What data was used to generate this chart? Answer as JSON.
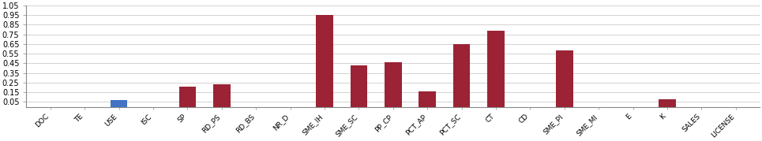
{
  "categories": [
    "DOC",
    "TE",
    "USE",
    "ISC",
    "SP",
    "RD_PS",
    "RD_BS",
    "NR_D",
    "SME_IH",
    "SME_SC",
    "PP_CP",
    "PCT_AP",
    "PCT_SC",
    "CT",
    "CD",
    "SME_PI",
    "SME_MI",
    "E",
    "K",
    "SALES",
    "LICENSE"
  ],
  "values": [
    0.0,
    0.0,
    0.07,
    0.0,
    0.21,
    0.23,
    0.0,
    0.0,
    0.95,
    0.43,
    0.46,
    0.16,
    0.65,
    0.79,
    0.0,
    0.58,
    0.0,
    0.0,
    0.08,
    0.0,
    0.0
  ],
  "bar_colors": [
    "#9B2335",
    "#9B2335",
    "#4472C4",
    "#9B2335",
    "#9B2335",
    "#9B2335",
    "#9B2335",
    "#9B2335",
    "#9B2335",
    "#9B2335",
    "#9B2335",
    "#9B2335",
    "#9B2335",
    "#9B2335",
    "#9B2335",
    "#9B2335",
    "#9B2335",
    "#9B2335",
    "#9B2335",
    "#9B2335",
    "#9B2335"
  ],
  "ylim": [
    0,
    1.05
  ],
  "yticks": [
    0.05,
    0.15,
    0.25,
    0.35,
    0.45,
    0.55,
    0.65,
    0.75,
    0.85,
    0.95,
    1.05
  ],
  "ytick_labels": [
    "0.05",
    "0.15",
    "0.25",
    "0.35",
    "0.45",
    "0.55",
    "0.65",
    "0.75",
    "0.85",
    "0.95",
    "1.05"
  ],
  "grid_color": "#C0C0C0",
  "background_color": "#FFFFFF",
  "bar_width": 0.5,
  "xlabel_fontsize": 6.5,
  "ylabel_fontsize": 7.0
}
